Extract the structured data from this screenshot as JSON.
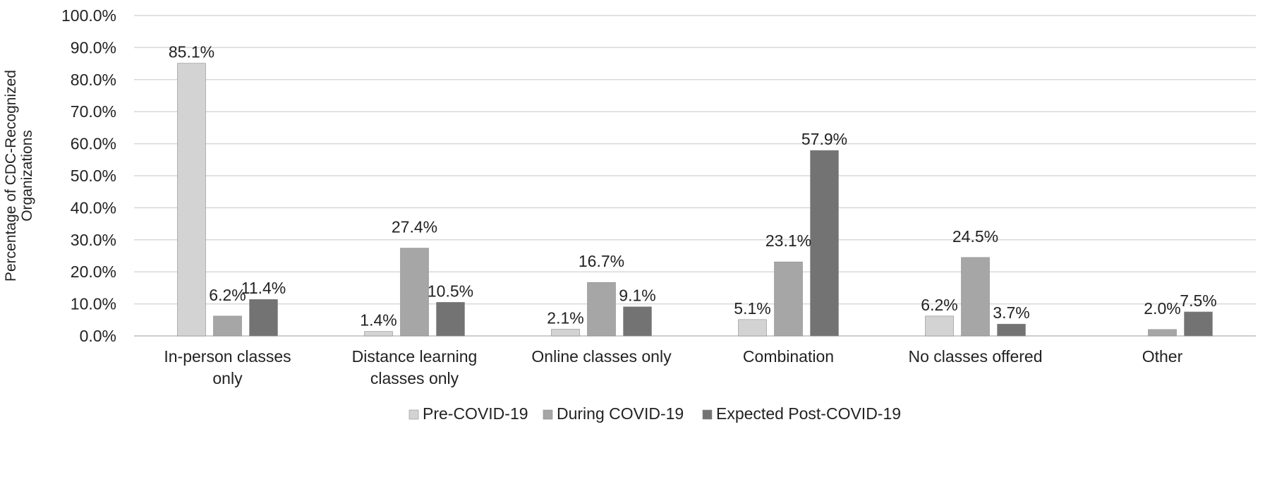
{
  "chart_data": {
    "type": "bar",
    "title": "",
    "xlabel": "",
    "ylabel_lines": [
      "Percentage of CDC-Recognized",
      "Organizations"
    ],
    "ylim": [
      0,
      100
    ],
    "ytick_step": 10,
    "ytick_labels": [
      "0.0%",
      "10.0%",
      "20.0%",
      "30.0%",
      "40.0%",
      "50.0%",
      "60.0%",
      "70.0%",
      "80.0%",
      "90.0%",
      "100.0%"
    ],
    "grid": true,
    "legend_position": "bottom",
    "categories": [
      [
        "In-person classes",
        "only"
      ],
      [
        "Distance learning",
        "classes only"
      ],
      [
        "Online classes only"
      ],
      [
        "Combination"
      ],
      [
        "No classes offered"
      ],
      [
        "Other"
      ]
    ],
    "series": [
      {
        "name": "Pre-COVID-19",
        "color": "#d3d3d3",
        "values": [
          85.1,
          1.4,
          2.1,
          5.1,
          6.2,
          null
        ],
        "labels": [
          "85.1%",
          "1.4%",
          "2.1%",
          "5.1%",
          "6.2%",
          ""
        ]
      },
      {
        "name": "During COVID-19",
        "color": "#a6a6a6",
        "values": [
          6.2,
          27.4,
          16.7,
          23.1,
          24.5,
          2.0
        ],
        "labels": [
          "6.2%",
          "27.4%",
          "16.7%",
          "23.1%",
          "24.5%",
          "2.0%"
        ]
      },
      {
        "name": "Expected Post-COVID-19",
        "color": "#737373",
        "values": [
          11.4,
          10.5,
          9.1,
          57.9,
          3.7,
          7.5
        ],
        "labels": [
          "11.4%",
          "10.5%",
          "9.1%",
          "57.9%",
          "3.7%",
          "7.5%"
        ]
      }
    ]
  }
}
